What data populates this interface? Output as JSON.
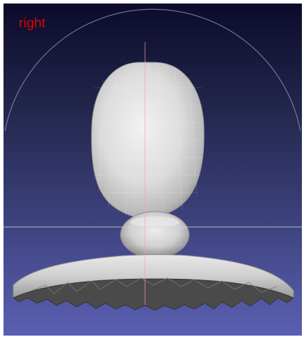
{
  "viewport": {
    "view_label": "right",
    "label_color": "#e00000",
    "background_top": "#0b0b2b",
    "background_bottom": "#5a60b2"
  },
  "model": {
    "mesh_color": "#d8d8d8",
    "shadow_color": "#3a3a3a"
  },
  "overlay": {
    "trackball": true,
    "axes": true
  }
}
